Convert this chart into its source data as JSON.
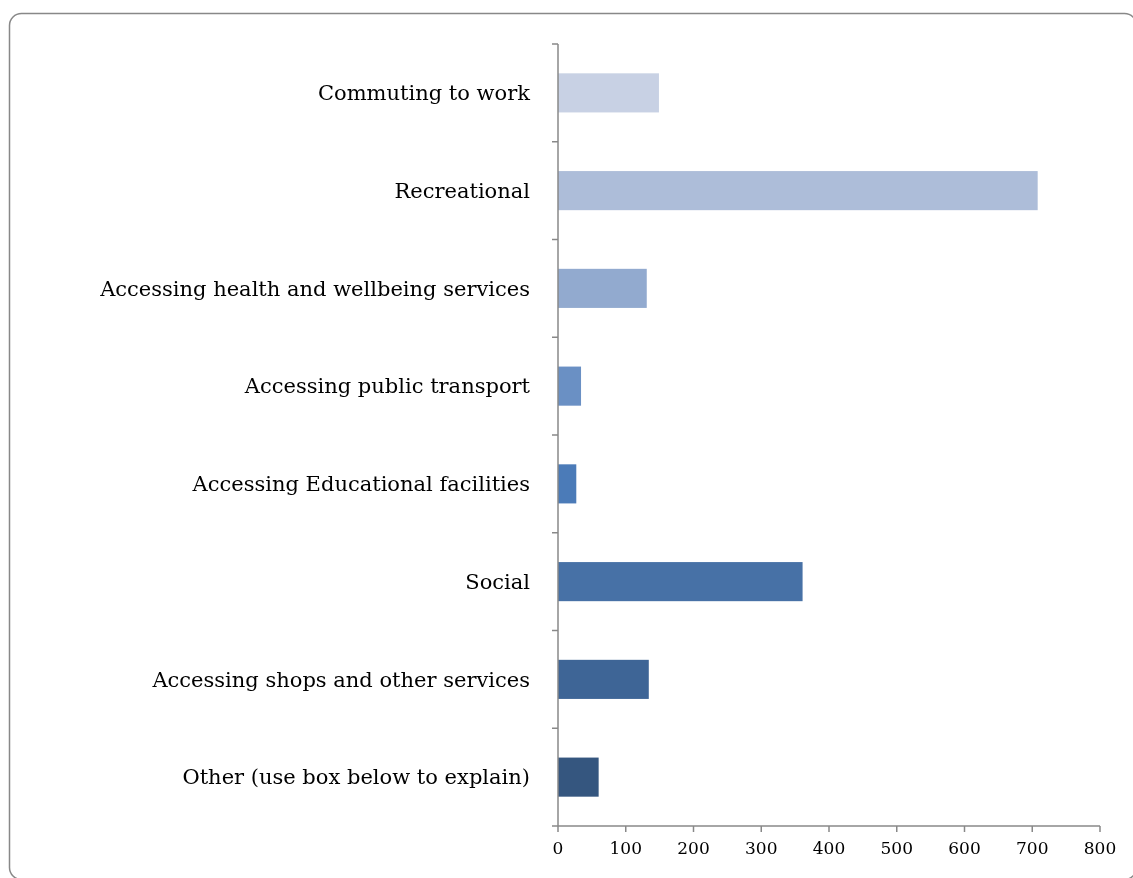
{
  "chart_data": {
    "type": "bar",
    "orientation": "horizontal",
    "categories": [
      "Commuting to work",
      "Recreational",
      "Accessing health and wellbeing services",
      "Accessing public transport",
      "Accessing Educational facilities",
      "Social",
      "Accessing shops and other services",
      "Other (use box below to explain)"
    ],
    "values": [
      149,
      708,
      131,
      34,
      27,
      361,
      134,
      60
    ],
    "colors": [
      "#c8d1e4",
      "#adbdd9",
      "#92aacf",
      "#6a90c4",
      "#4b7bb8",
      "#4771a6",
      "#3e6596",
      "#35567f"
    ],
    "xlim": [
      0,
      800
    ],
    "xticks": [
      0,
      100,
      200,
      300,
      400,
      500,
      600,
      700,
      800
    ],
    "grid": false
  }
}
